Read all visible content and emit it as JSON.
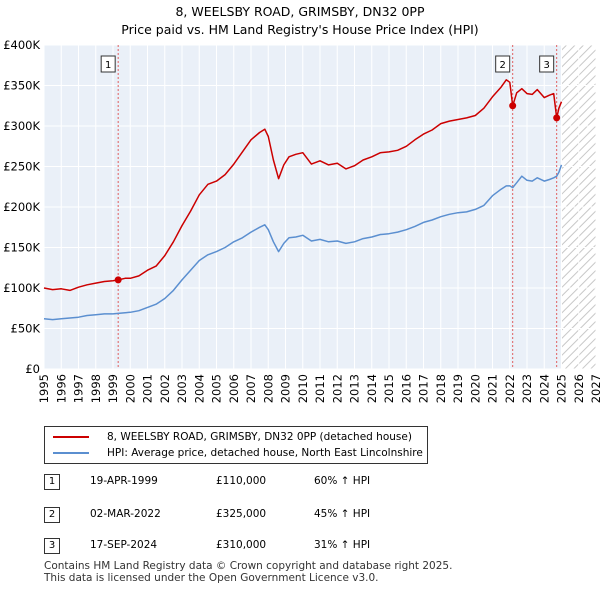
{
  "title": "8, WEELSBY ROAD, GRIMSBY, DN32 0PP",
  "subtitle": "Price paid vs. HM Land Registry's House Price Index (HPI)",
  "chart_data": {
    "type": "line",
    "xlim": [
      1995,
      2027
    ],
    "ylim": [
      0,
      400000
    ],
    "y_ticks": [
      {
        "value": 0,
        "label": "£0"
      },
      {
        "value": 50000,
        "label": "£50K"
      },
      {
        "value": 100000,
        "label": "£100K"
      },
      {
        "value": 150000,
        "label": "£150K"
      },
      {
        "value": 200000,
        "label": "£200K"
      },
      {
        "value": 250000,
        "label": "£250K"
      },
      {
        "value": 300000,
        "label": "£300K"
      },
      {
        "value": 350000,
        "label": "£350K"
      },
      {
        "value": 400000,
        "label": "£400K"
      }
    ],
    "x_ticks": [
      "1995",
      "1996",
      "1997",
      "1998",
      "1999",
      "2000",
      "2001",
      "2002",
      "2003",
      "2004",
      "2005",
      "2006",
      "2007",
      "2008",
      "2009",
      "2010",
      "2011",
      "2012",
      "2013",
      "2014",
      "2015",
      "2016",
      "2017",
      "2018",
      "2019",
      "2020",
      "2021",
      "2022",
      "2023",
      "2024",
      "2025",
      "2026",
      "2027"
    ],
    "data_end": 2025.0,
    "series": [
      {
        "name": "8, WEELSBY ROAD, GRIMSBY, DN32 0PP (detached house)",
        "color": "#cc0000",
        "points": [
          [
            1995,
            100000
          ],
          [
            1995.5,
            98000
          ],
          [
            1996,
            99000
          ],
          [
            1996.5,
            97000
          ],
          [
            1997,
            101000
          ],
          [
            1997.5,
            104000
          ],
          [
            1998,
            106000
          ],
          [
            1998.5,
            108000
          ],
          [
            1999,
            109000
          ],
          [
            1999.3,
            110000
          ],
          [
            1999.7,
            112000
          ],
          [
            2000,
            112000
          ],
          [
            2000.5,
            115000
          ],
          [
            2001,
            122000
          ],
          [
            2001.5,
            127000
          ],
          [
            2002,
            140000
          ],
          [
            2002.5,
            157000
          ],
          [
            2003,
            177000
          ],
          [
            2003.5,
            195000
          ],
          [
            2004,
            215000
          ],
          [
            2004.5,
            228000
          ],
          [
            2005,
            232000
          ],
          [
            2005.5,
            240000
          ],
          [
            2006,
            253000
          ],
          [
            2006.5,
            268000
          ],
          [
            2007,
            283000
          ],
          [
            2007.5,
            292000
          ],
          [
            2007.8,
            296000
          ],
          [
            2008,
            287000
          ],
          [
            2008.3,
            258000
          ],
          [
            2008.6,
            235000
          ],
          [
            2008.9,
            252000
          ],
          [
            2009.2,
            262000
          ],
          [
            2009.6,
            265000
          ],
          [
            2010,
            267000
          ],
          [
            2010.5,
            253000
          ],
          [
            2011,
            257000
          ],
          [
            2011.5,
            252000
          ],
          [
            2012,
            254000
          ],
          [
            2012.5,
            247000
          ],
          [
            2013,
            251000
          ],
          [
            2013.5,
            258000
          ],
          [
            2014,
            262000
          ],
          [
            2014.5,
            267000
          ],
          [
            2015,
            268000
          ],
          [
            2015.5,
            270000
          ],
          [
            2016,
            275000
          ],
          [
            2016.5,
            283000
          ],
          [
            2017,
            290000
          ],
          [
            2017.5,
            295000
          ],
          [
            2018,
            303000
          ],
          [
            2018.5,
            306000
          ],
          [
            2019,
            308000
          ],
          [
            2019.5,
            310000
          ],
          [
            2020,
            313000
          ],
          [
            2020.5,
            322000
          ],
          [
            2021,
            336000
          ],
          [
            2021.5,
            348000
          ],
          [
            2021.8,
            357000
          ],
          [
            2022,
            354000
          ],
          [
            2022.17,
            325000
          ],
          [
            2022.4,
            341000
          ],
          [
            2022.7,
            346000
          ],
          [
            2023,
            340000
          ],
          [
            2023.3,
            339000
          ],
          [
            2023.6,
            345000
          ],
          [
            2024,
            335000
          ],
          [
            2024.3,
            338000
          ],
          [
            2024.55,
            340000
          ],
          [
            2024.72,
            310000
          ],
          [
            2024.85,
            322000
          ],
          [
            2025,
            330000
          ]
        ]
      },
      {
        "name": "HPI: Average price, detached house, North East Lincolnshire",
        "color": "#5b8fd0",
        "points": [
          [
            1995,
            62000
          ],
          [
            1995.5,
            61000
          ],
          [
            1996,
            62000
          ],
          [
            1996.5,
            63000
          ],
          [
            1997,
            64000
          ],
          [
            1997.5,
            66000
          ],
          [
            1998,
            67000
          ],
          [
            1998.5,
            68000
          ],
          [
            1999,
            68000
          ],
          [
            1999.3,
            68700
          ],
          [
            1999.7,
            69500
          ],
          [
            2000,
            70000
          ],
          [
            2000.5,
            72000
          ],
          [
            2001,
            76000
          ],
          [
            2001.5,
            80000
          ],
          [
            2002,
            87000
          ],
          [
            2002.5,
            97000
          ],
          [
            2003,
            110000
          ],
          [
            2003.5,
            122000
          ],
          [
            2004,
            134000
          ],
          [
            2004.5,
            141000
          ],
          [
            2005,
            145000
          ],
          [
            2005.5,
            150000
          ],
          [
            2006,
            157000
          ],
          [
            2006.5,
            162000
          ],
          [
            2007,
            169000
          ],
          [
            2007.5,
            175000
          ],
          [
            2007.8,
            178000
          ],
          [
            2008,
            172000
          ],
          [
            2008.3,
            157000
          ],
          [
            2008.6,
            145000
          ],
          [
            2008.9,
            155000
          ],
          [
            2009.2,
            162000
          ],
          [
            2009.6,
            163000
          ],
          [
            2010,
            165000
          ],
          [
            2010.5,
            158000
          ],
          [
            2011,
            160000
          ],
          [
            2011.5,
            157000
          ],
          [
            2012,
            158000
          ],
          [
            2012.5,
            155000
          ],
          [
            2013,
            157000
          ],
          [
            2013.5,
            161000
          ],
          [
            2014,
            163000
          ],
          [
            2014.5,
            166000
          ],
          [
            2015,
            167000
          ],
          [
            2015.5,
            169000
          ],
          [
            2016,
            172000
          ],
          [
            2016.5,
            176000
          ],
          [
            2017,
            181000
          ],
          [
            2017.5,
            184000
          ],
          [
            2018,
            188000
          ],
          [
            2018.5,
            191000
          ],
          [
            2019,
            193000
          ],
          [
            2019.5,
            194000
          ],
          [
            2020,
            197000
          ],
          [
            2020.5,
            202000
          ],
          [
            2021,
            214000
          ],
          [
            2021.5,
            222000
          ],
          [
            2021.8,
            226000
          ],
          [
            2022,
            226000
          ],
          [
            2022.17,
            224000
          ],
          [
            2022.4,
            230000
          ],
          [
            2022.7,
            238000
          ],
          [
            2023,
            233000
          ],
          [
            2023.3,
            232000
          ],
          [
            2023.6,
            236000
          ],
          [
            2024,
            232000
          ],
          [
            2024.3,
            234000
          ],
          [
            2024.55,
            236000
          ],
          [
            2024.72,
            238000
          ],
          [
            2024.85,
            243000
          ],
          [
            2025,
            252000
          ]
        ]
      }
    ],
    "sales": [
      {
        "num": "1",
        "x": 1999.3,
        "value": 110000
      },
      {
        "num": "2",
        "x": 2022.17,
        "value": 325000
      },
      {
        "num": "3",
        "x": 2024.72,
        "value": 310000
      }
    ]
  },
  "legend": {
    "property_label": "8, WEELSBY ROAD, GRIMSBY, DN32 0PP (detached house)",
    "hpi_label": "HPI: Average price, detached house, North East Lincolnshire",
    "property_color": "#cc0000",
    "hpi_color": "#5b8fd0"
  },
  "sales_table": [
    {
      "num": "1",
      "date": "19-APR-1999",
      "price": "£110,000",
      "hpi": "60% ↑ HPI"
    },
    {
      "num": "2",
      "date": "02-MAR-2022",
      "price": "£325,000",
      "hpi": "45% ↑ HPI"
    },
    {
      "num": "3",
      "date": "17-SEP-2024",
      "price": "£310,000",
      "hpi": "31% ↑ HPI"
    }
  ],
  "footer": {
    "line1": "Contains HM Land Registry data © Crown copyright and database right 2025.",
    "line2": "This data is licensed under the Open Government Licence v3.0."
  }
}
